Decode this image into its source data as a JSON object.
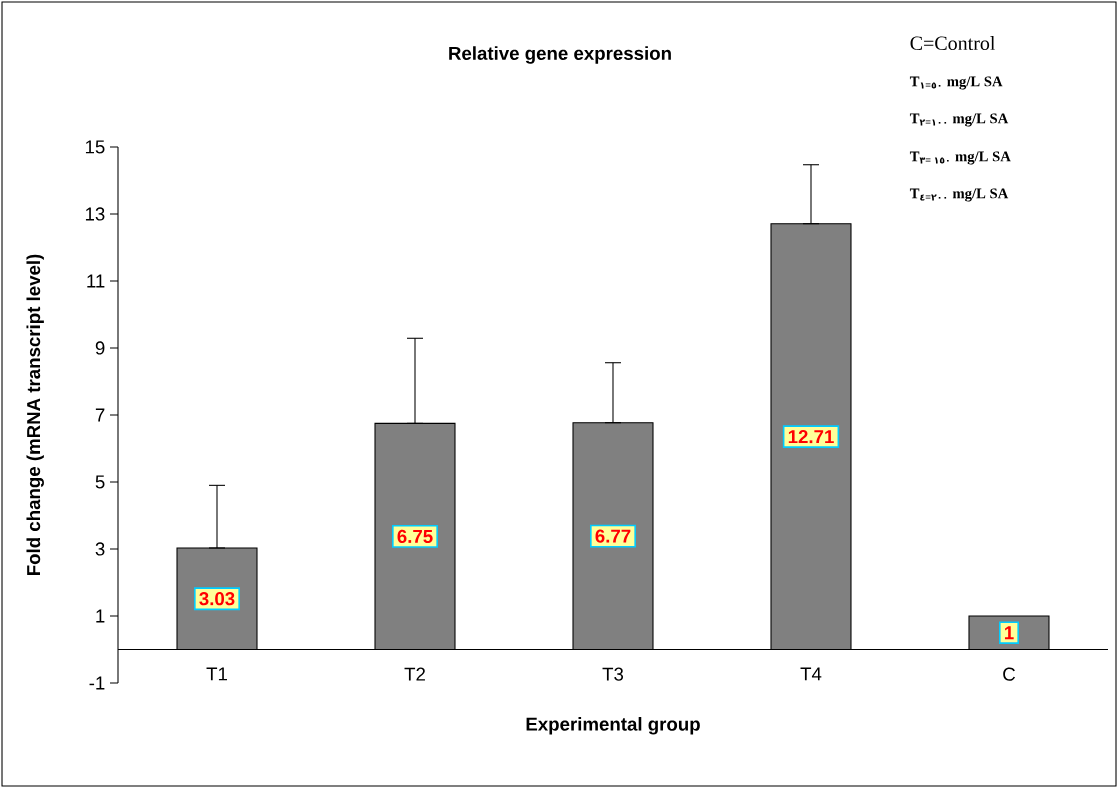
{
  "chart_data": {
    "type": "bar",
    "title": "Relative gene expression",
    "xlabel": "Experimental group",
    "ylabel": "Fold change (mRNA transcript level)",
    "categories": [
      "T1",
      "T2",
      "T3",
      "T4",
      "C"
    ],
    "values": [
      3.03,
      6.75,
      6.77,
      12.71,
      1
    ],
    "errors": [
      [
        3.03,
        4.9
      ],
      [
        6.75,
        9.29
      ],
      [
        6.77,
        8.56
      ],
      [
        12.71,
        14.47
      ],
      null
    ],
    "color": "#808080",
    "ylim": [
      -1,
      15
    ],
    "yticks": [
      -1,
      1,
      3,
      5,
      7,
      9,
      11,
      13,
      15
    ],
    "data_labels": true,
    "annotations": [
      "C=Control",
      "T$_{١=٥٠}$ mg/L SA",
      "T$_{٢=١٠٠}$ mg/L SA",
      "T$_{٣= ١٥٠}$ mg/L SA",
      "T$_{٤=٢٠٠}$ mg/L SA"
    ]
  }
}
